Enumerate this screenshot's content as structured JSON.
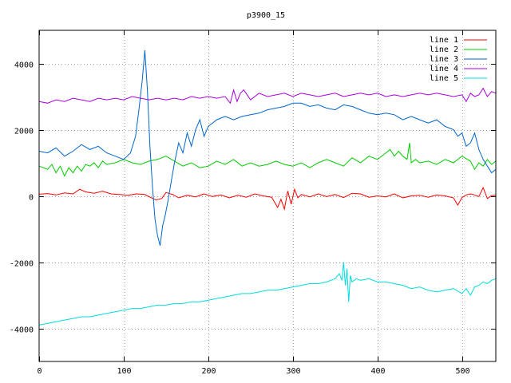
{
  "chart_data": {
    "type": "line",
    "title": "p3900_15",
    "xlabel": "",
    "ylabel": "",
    "xlim": [
      0,
      540
    ],
    "ylim": [
      -5000,
      5000
    ],
    "x_ticks": [
      0,
      100,
      200,
      300,
      400,
      500
    ],
    "y_ticks": [
      -4000,
      -2000,
      0,
      2000,
      4000
    ],
    "grid": true,
    "legend_position": "top-right",
    "series": [
      {
        "name": "line 1",
        "color": "#ff0000",
        "x": [
          0,
          10,
          20,
          30,
          40,
          48,
          55,
          65,
          75,
          85,
          95,
          105,
          115,
          125,
          132,
          138,
          145,
          150,
          158,
          165,
          175,
          185,
          195,
          205,
          215,
          225,
          235,
          245,
          255,
          265,
          275,
          282,
          286,
          290,
          294,
          298,
          302,
          306,
          310,
          320,
          330,
          340,
          350,
          360,
          370,
          380,
          390,
          400,
          410,
          420,
          430,
          440,
          450,
          460,
          470,
          480,
          490,
          495,
          500,
          505,
          510,
          515,
          520,
          525,
          530,
          535,
          540
        ],
        "values": [
          50,
          70,
          30,
          90,
          60,
          200,
          120,
          80,
          140,
          60,
          40,
          20,
          60,
          40,
          -50,
          -120,
          -80,
          100,
          40,
          -60,
          20,
          -30,
          60,
          -20,
          30,
          -60,
          20,
          -40,
          60,
          0,
          -40,
          -350,
          -100,
          -400,
          150,
          -250,
          200,
          -60,
          40,
          -30,
          60,
          -20,
          40,
          -50,
          80,
          60,
          -40,
          0,
          -30,
          60,
          -60,
          0,
          20,
          -40,
          30,
          0,
          -60,
          -280,
          -50,
          30,
          60,
          30,
          -20,
          250,
          -80,
          10,
          30
        ]
      },
      {
        "name": "line 2",
        "color": "#00cc00",
        "x": [
          0,
          5,
          10,
          15,
          20,
          25,
          30,
          35,
          40,
          45,
          50,
          55,
          60,
          65,
          70,
          75,
          80,
          90,
          100,
          110,
          120,
          130,
          140,
          150,
          160,
          170,
          180,
          190,
          200,
          210,
          220,
          230,
          240,
          250,
          260,
          270,
          280,
          290,
          300,
          310,
          320,
          330,
          340,
          350,
          360,
          370,
          380,
          390,
          400,
          410,
          415,
          420,
          425,
          430,
          435,
          438,
          440,
          445,
          450,
          460,
          470,
          480,
          490,
          500,
          510,
          515,
          520,
          525,
          530,
          535,
          540
        ],
        "values": [
          900,
          850,
          800,
          950,
          700,
          900,
          600,
          850,
          700,
          900,
          750,
          950,
          900,
          1000,
          850,
          1050,
          950,
          1000,
          1100,
          1000,
          950,
          1050,
          1100,
          1200,
          1050,
          900,
          1000,
          850,
          900,
          1050,
          950,
          1100,
          900,
          1000,
          900,
          950,
          1050,
          950,
          900,
          1000,
          850,
          1000,
          1100,
          1000,
          900,
          1150,
          1000,
          1200,
          1100,
          1300,
          1400,
          1200,
          1350,
          1200,
          1100,
          1600,
          1000,
          1100,
          1000,
          1050,
          950,
          1100,
          1000,
          1200,
          1050,
          800,
          1000,
          900,
          1100,
          950,
          1050
        ]
      },
      {
        "name": "line 3",
        "color": "#0066cc",
        "x": [
          0,
          10,
          20,
          30,
          40,
          50,
          60,
          70,
          80,
          90,
          100,
          108,
          114,
          118,
          122,
          125,
          128,
          131,
          134,
          137,
          140,
          143,
          146,
          149,
          152,
          156,
          160,
          165,
          170,
          175,
          180,
          185,
          190,
          195,
          200,
          210,
          220,
          230,
          240,
          250,
          260,
          270,
          280,
          290,
          300,
          310,
          320,
          330,
          340,
          350,
          360,
          370,
          380,
          390,
          400,
          410,
          420,
          430,
          440,
          450,
          460,
          470,
          480,
          490,
          495,
          500,
          505,
          510,
          515,
          520,
          525,
          530,
          535,
          540
        ],
        "values": [
          1350,
          1300,
          1450,
          1200,
          1350,
          1550,
          1400,
          1500,
          1300,
          1200,
          1100,
          1300,
          1800,
          2600,
          3500,
          4400,
          3200,
          1500,
          300,
          -700,
          -1200,
          -1500,
          -900,
          -600,
          -200,
          400,
          1000,
          1600,
          1300,
          1900,
          1500,
          2000,
          2300,
          1800,
          2100,
          2300,
          2400,
          2300,
          2400,
          2450,
          2500,
          2600,
          2650,
          2700,
          2800,
          2800,
          2700,
          2750,
          2650,
          2600,
          2750,
          2700,
          2600,
          2500,
          2450,
          2500,
          2450,
          2300,
          2400,
          2300,
          2200,
          2300,
          2100,
          2000,
          1800,
          1900,
          1500,
          1600,
          1900,
          1400,
          1100,
          900,
          700,
          800
        ]
      },
      {
        "name": "line 4",
        "color": "#aa00dd",
        "x": [
          0,
          10,
          20,
          30,
          40,
          50,
          60,
          70,
          80,
          90,
          100,
          110,
          120,
          130,
          140,
          150,
          160,
          170,
          180,
          190,
          200,
          210,
          220,
          226,
          230,
          234,
          238,
          242,
          250,
          260,
          270,
          280,
          290,
          300,
          310,
          320,
          330,
          340,
          350,
          360,
          370,
          380,
          390,
          400,
          410,
          420,
          430,
          440,
          450,
          460,
          470,
          480,
          490,
          500,
          505,
          510,
          515,
          520,
          525,
          530,
          535,
          540
        ],
        "values": [
          2850,
          2800,
          2900,
          2850,
          2950,
          2900,
          2850,
          2950,
          2900,
          2950,
          2900,
          3000,
          2950,
          2900,
          2950,
          2900,
          2950,
          2900,
          3000,
          2950,
          3000,
          2950,
          3000,
          2800,
          3200,
          2850,
          3100,
          3200,
          2900,
          3100,
          3000,
          3050,
          3100,
          3000,
          3100,
          3050,
          3000,
          3050,
          3100,
          3000,
          3050,
          3100,
          3050,
          3100,
          3000,
          3050,
          3000,
          3050,
          3100,
          3050,
          3100,
          3050,
          3000,
          3050,
          2850,
          3100,
          3000,
          3050,
          3250,
          3000,
          3150,
          3100
        ]
      },
      {
        "name": "line 5",
        "color": "#00dddd",
        "x": [
          0,
          10,
          20,
          30,
          40,
          50,
          60,
          70,
          80,
          90,
          100,
          110,
          120,
          130,
          140,
          150,
          160,
          170,
          180,
          190,
          200,
          210,
          220,
          230,
          240,
          250,
          260,
          270,
          280,
          290,
          300,
          310,
          320,
          330,
          340,
          350,
          355,
          358,
          360,
          362,
          364,
          366,
          368,
          370,
          375,
          380,
          390,
          400,
          410,
          420,
          430,
          440,
          450,
          460,
          470,
          480,
          490,
          500,
          505,
          510,
          515,
          520,
          525,
          530,
          535,
          540
        ],
        "values": [
          -3900,
          -3850,
          -3800,
          -3750,
          -3700,
          -3650,
          -3650,
          -3600,
          -3550,
          -3500,
          -3450,
          -3400,
          -3400,
          -3350,
          -3300,
          -3300,
          -3250,
          -3250,
          -3200,
          -3200,
          -3150,
          -3100,
          -3050,
          -3000,
          -2950,
          -2950,
          -2900,
          -2850,
          -2850,
          -2800,
          -2750,
          -2700,
          -2650,
          -2650,
          -2600,
          -2500,
          -2350,
          -2550,
          -2000,
          -2700,
          -2200,
          -3200,
          -2400,
          -2600,
          -2500,
          -2550,
          -2500,
          -2600,
          -2600,
          -2650,
          -2700,
          -2800,
          -2750,
          -2850,
          -2900,
          -2850,
          -2800,
          -2950,
          -2800,
          -3000,
          -2750,
          -2700,
          -2600,
          -2650,
          -2550,
          -2500
        ]
      }
    ]
  }
}
